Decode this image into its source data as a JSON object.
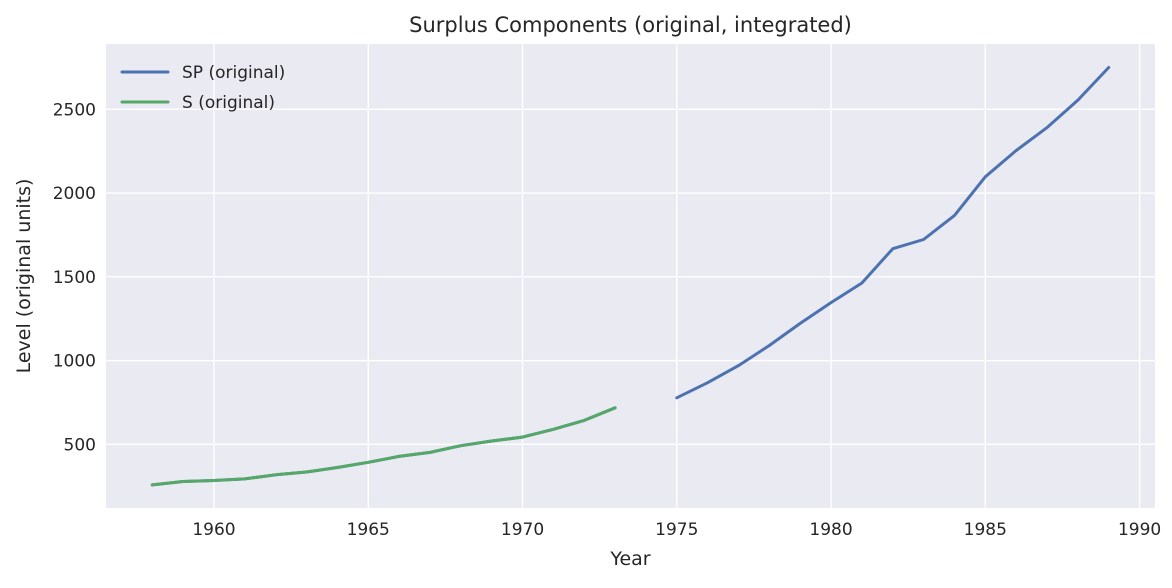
{
  "chart_data": {
    "type": "line",
    "title": "Surplus Components (original, integrated)",
    "xlabel": "Year",
    "ylabel": "Level (original units)",
    "xlim": [
      1956.5,
      1990.5
    ],
    "ylim": [
      120,
      2890
    ],
    "xticks": [
      1960,
      1965,
      1970,
      1975,
      1980,
      1985,
      1990
    ],
    "yticks": [
      500,
      1000,
      1500,
      2000,
      2500
    ],
    "grid": true,
    "legend_position": "top-left",
    "series": [
      {
        "name": "SP (original)",
        "color": "#4c72b0",
        "x": [
          1958,
          1959,
          1960,
          1961,
          1962,
          1963,
          1964,
          1965,
          1966,
          1967,
          1968,
          1969,
          1970,
          1971,
          1972,
          1973,
          1974,
          1975,
          1976,
          1977,
          1978,
          1979,
          1980,
          1981,
          1982,
          1983,
          1984,
          1985,
          1986,
          1987,
          1988,
          1989
        ],
        "y": [
          258,
          278,
          284,
          294,
          318,
          335,
          362,
          393,
          428,
          452,
          492,
          520,
          543,
          590,
          643,
          718,
          null,
          778,
          868,
          970,
          1090,
          1222,
          1346,
          1463,
          1668,
          1723,
          1867,
          2097,
          2254,
          2391,
          2555,
          2750
        ]
      },
      {
        "name": "S (original)",
        "color": "#55a868",
        "x": [
          1958,
          1959,
          1960,
          1961,
          1962,
          1963,
          1964,
          1965,
          1966,
          1967,
          1968,
          1969,
          1970,
          1971,
          1972,
          1973
        ],
        "y": [
          258,
          278,
          284,
          294,
          318,
          335,
          362,
          393,
          428,
          452,
          492,
          520,
          543,
          590,
          643,
          718
        ]
      }
    ]
  }
}
